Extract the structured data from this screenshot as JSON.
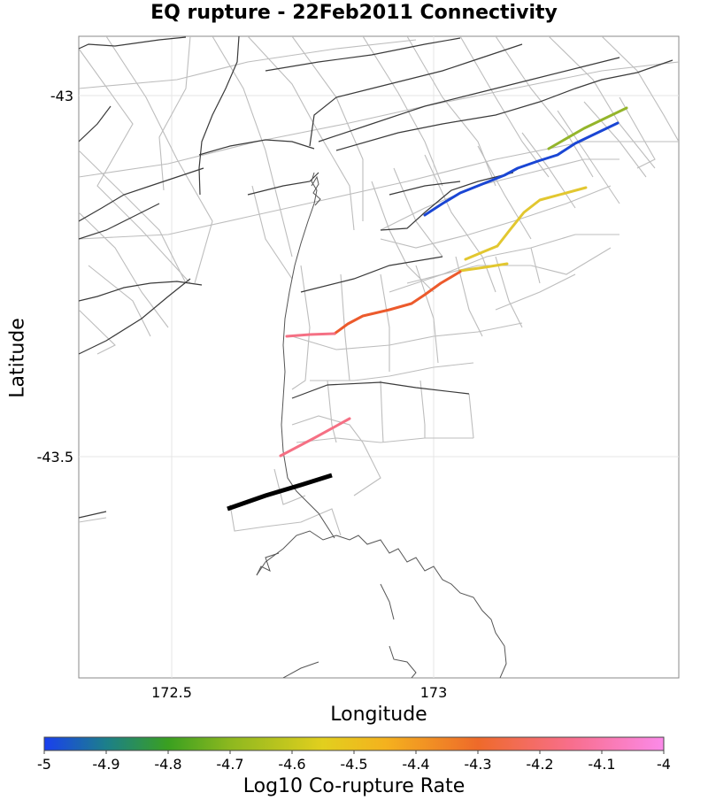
{
  "title": "EQ rupture - 22Feb2011 Connectivity",
  "axes": {
    "xlabel": "Longitude",
    "ylabel": "Latitude",
    "xticks": [
      "172.5",
      "173"
    ],
    "yticks": [
      "-43",
      "-43.5"
    ]
  },
  "colorbar": {
    "label": "Log10 Co-rupture Rate",
    "ticks": [
      "-5",
      "-4.9",
      "-4.8",
      "-4.7",
      "-4.6",
      "-4.5",
      "-4.4",
      "-4.3",
      "-4.2",
      "-4.1",
      "-4"
    ],
    "colors": [
      "#1a3fef",
      "#1c7f8a",
      "#3aa020",
      "#8db81f",
      "#e2cf1e",
      "#f4b21e",
      "#f3942a",
      "#ee6a2a",
      "#f2553e",
      "#f86e8c",
      "#fb8ae9"
    ]
  },
  "map": {
    "source_fault_color": "#000000",
    "colored_ruptures": [
      {
        "value": -4.65,
        "color": "#94b52b"
      },
      {
        "value": -5.0,
        "color": "#1a46d4"
      },
      {
        "value": -4.55,
        "color": "#e2c730"
      },
      {
        "value": -4.55,
        "color": "#e2c730"
      },
      {
        "value": -4.55,
        "color": "#e2c730"
      },
      {
        "value": -4.25,
        "color": "#ec5a2c"
      },
      {
        "value": -4.1,
        "color": "#f57084"
      },
      {
        "value": -4.1,
        "color": "#f57084"
      }
    ]
  }
}
